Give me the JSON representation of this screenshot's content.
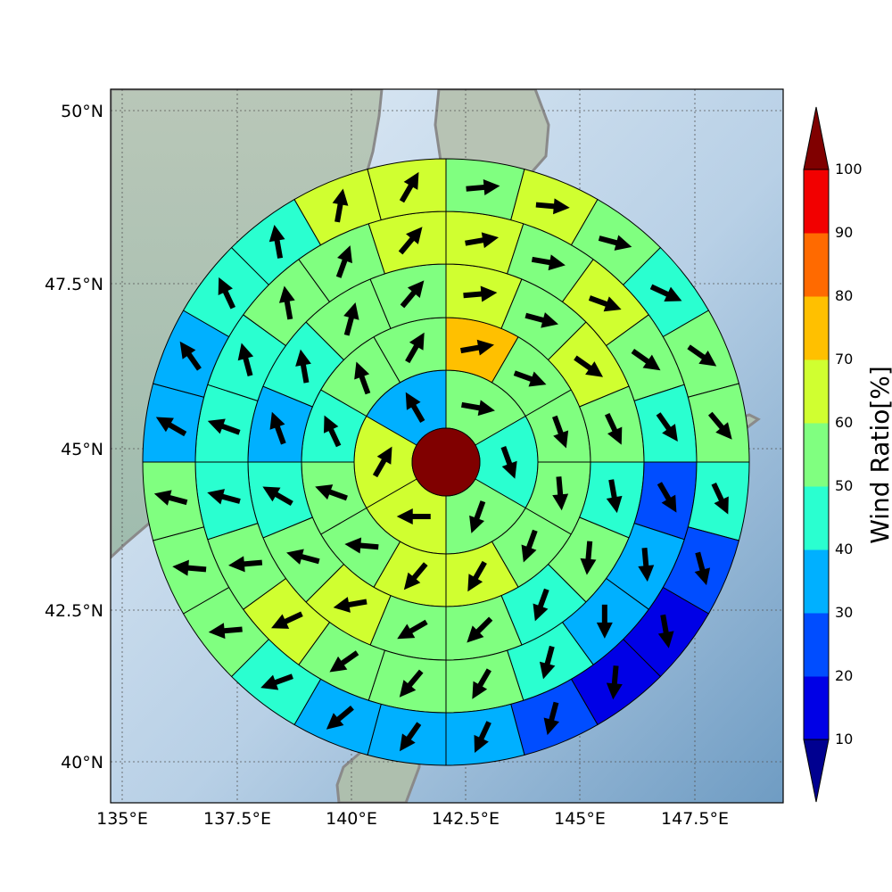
{
  "chart_data": {
    "type": "polar_sector_map",
    "map": {
      "lon_range": [
        134.8,
        149.2
      ],
      "lat_range": [
        39.5,
        50.3
      ],
      "xticks": [
        "135°E",
        "137.5°E",
        "140°E",
        "142.5°E",
        "145°E",
        "147.5°E"
      ],
      "xtick_values": [
        135,
        137.5,
        140,
        142.5,
        145,
        147.5
      ],
      "yticks": [
        "40°N",
        "42.5°N",
        "45°N",
        "47.5°N",
        "50°N"
      ],
      "ytick_values": [
        40,
        42.5,
        45,
        47.5,
        50
      ],
      "grid": true
    },
    "center": {
      "lon": 142.3,
      "lat": 45.0,
      "value": 100
    },
    "rings": [
      {
        "sectors": 6,
        "values": [
          55,
          45,
          55,
          60,
          60,
          35
        ],
        "arrow_deg": [
          100,
          160,
          200,
          270,
          30,
          330
        ]
      },
      {
        "sectors": 12,
        "values": [
          75,
          55,
          55,
          50,
          55,
          60,
          60,
          50,
          50,
          40,
          50,
          55
        ],
        "arrow_deg": [
          80,
          110,
          160,
          175,
          200,
          210,
          220,
          275,
          290,
          335,
          340,
          30
        ]
      },
      {
        "sectors": 16,
        "values": [
          60,
          55,
          60,
          55,
          45,
          55,
          45,
          50,
          55,
          60,
          55,
          45,
          35,
          45,
          55,
          55
        ],
        "arrow_deg": [
          85,
          105,
          125,
          155,
          170,
          185,
          200,
          225,
          240,
          260,
          285,
          300,
          340,
          350,
          15,
          40
        ]
      },
      {
        "sectors": 20,
        "values": [
          60,
          50,
          60,
          55,
          45,
          25,
          35,
          30,
          45,
          50,
          55,
          55,
          60,
          50,
          45,
          45,
          45,
          55,
          55,
          60
        ],
        "arrow_deg": [
          80,
          100,
          110,
          125,
          145,
          150,
          175,
          180,
          195,
          210,
          220,
          235,
          245,
          265,
          285,
          290,
          345,
          350,
          20,
          40
        ]
      },
      {
        "sectors": 24,
        "values": [
          55,
          60,
          55,
          45,
          55,
          50,
          45,
          25,
          15,
          15,
          25,
          30,
          30,
          35,
          45,
          50,
          55,
          55,
          30,
          35,
          45,
          45,
          60,
          60
        ],
        "arrow_deg": [
          85,
          95,
          105,
          115,
          125,
          140,
          155,
          165,
          170,
          185,
          195,
          205,
          215,
          230,
          250,
          265,
          275,
          285,
          300,
          325,
          335,
          350,
          10,
          30
        ]
      }
    ],
    "colorbar": {
      "label": "Wind Ratio[%]",
      "ticks": [
        "10",
        "20",
        "30",
        "40",
        "50",
        "60",
        "70",
        "80",
        "90",
        "100"
      ],
      "tick_values": [
        10,
        20,
        30,
        40,
        50,
        60,
        70,
        80,
        90,
        100
      ],
      "range": [
        10,
        100
      ],
      "extend": "both",
      "colors": [
        "#0000e6",
        "#004dff",
        "#00b0ff",
        "#2affd0",
        "#80ff80",
        "#d0ff30",
        "#ffc000",
        "#ff6a00",
        "#f20000"
      ],
      "under_color": "#000090",
      "over_color": "#800000"
    },
    "basemap_colors": {
      "sea_light": "#d8e8f4",
      "sea_dark": "#7aa5c8",
      "land": "#a9c4b0",
      "coast": "#888888"
    }
  }
}
